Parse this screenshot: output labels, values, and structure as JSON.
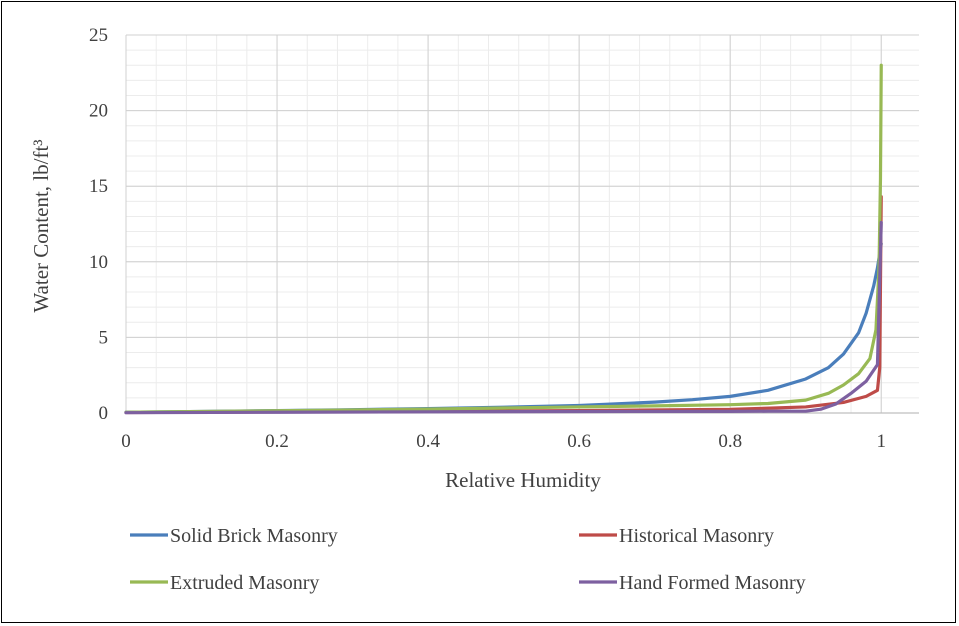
{
  "chart_data": {
    "type": "line",
    "title": "",
    "xlabel": "Relative Humidity",
    "ylabel": "Water Content, lb/ft³",
    "xlim": [
      0,
      1.05
    ],
    "ylim": [
      0,
      25
    ],
    "x_ticks": [
      0,
      0.2,
      0.4,
      0.6,
      0.8,
      1
    ],
    "x_tick_labels": [
      "0",
      "0.2",
      "0.4",
      "0.6",
      "0.8",
      "1"
    ],
    "y_ticks": [
      0,
      5,
      10,
      15,
      20,
      25
    ],
    "y_tick_labels": [
      "0",
      "5",
      "10",
      "15",
      "20",
      "25"
    ],
    "grid": true,
    "legend_position": "bottom",
    "series": [
      {
        "name": "Solid Brick Masonry",
        "color": "#4a7ebb",
        "points": [
          [
            0,
            0.05
          ],
          [
            0.1,
            0.1
          ],
          [
            0.2,
            0.16
          ],
          [
            0.3,
            0.22
          ],
          [
            0.4,
            0.29
          ],
          [
            0.5,
            0.38
          ],
          [
            0.6,
            0.5
          ],
          [
            0.7,
            0.72
          ],
          [
            0.75,
            0.88
          ],
          [
            0.8,
            1.1
          ],
          [
            0.85,
            1.5
          ],
          [
            0.9,
            2.25
          ],
          [
            0.93,
            3.0
          ],
          [
            0.95,
            3.9
          ],
          [
            0.97,
            5.3
          ],
          [
            0.98,
            6.6
          ],
          [
            0.99,
            8.4
          ],
          [
            0.995,
            9.6
          ],
          [
            1.0,
            11.2
          ]
        ]
      },
      {
        "name": "Historical Masonry",
        "color": "#be4b48",
        "points": [
          [
            0,
            0.03
          ],
          [
            0.2,
            0.07
          ],
          [
            0.4,
            0.11
          ],
          [
            0.6,
            0.16
          ],
          [
            0.8,
            0.24
          ],
          [
            0.9,
            0.4
          ],
          [
            0.95,
            0.7
          ],
          [
            0.98,
            1.1
          ],
          [
            0.995,
            1.5
          ],
          [
            0.998,
            3.0
          ],
          [
            1.0,
            14.3
          ]
        ]
      },
      {
        "name": "Extruded Masonry",
        "color": "#98b954",
        "points": [
          [
            0,
            0.05
          ],
          [
            0.1,
            0.1
          ],
          [
            0.2,
            0.15
          ],
          [
            0.3,
            0.2
          ],
          [
            0.4,
            0.26
          ],
          [
            0.5,
            0.33
          ],
          [
            0.6,
            0.4
          ],
          [
            0.7,
            0.47
          ],
          [
            0.8,
            0.55
          ],
          [
            0.85,
            0.63
          ],
          [
            0.9,
            0.85
          ],
          [
            0.93,
            1.3
          ],
          [
            0.95,
            1.85
          ],
          [
            0.97,
            2.6
          ],
          [
            0.985,
            3.6
          ],
          [
            0.993,
            5.5
          ],
          [
            0.997,
            9.5
          ],
          [
            0.999,
            15.5
          ],
          [
            1.0,
            23.0
          ]
        ]
      },
      {
        "name": "Hand Formed Masonry",
        "color": "#7d60a0",
        "points": [
          [
            0,
            0.02
          ],
          [
            0.2,
            0.05
          ],
          [
            0.4,
            0.08
          ],
          [
            0.6,
            0.1
          ],
          [
            0.8,
            0.11
          ],
          [
            0.85,
            0.12
          ],
          [
            0.9,
            0.12
          ],
          [
            0.92,
            0.25
          ],
          [
            0.94,
            0.6
          ],
          [
            0.96,
            1.3
          ],
          [
            0.98,
            2.1
          ],
          [
            0.995,
            3.2
          ],
          [
            1.0,
            12.6
          ]
        ]
      }
    ]
  }
}
